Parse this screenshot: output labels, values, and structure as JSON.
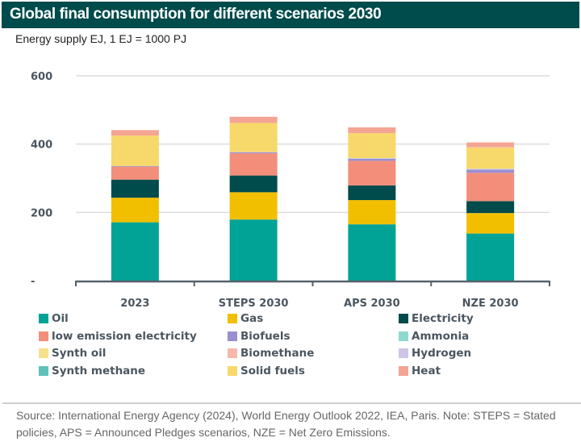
{
  "header": {
    "title": "Global final consumption for different scenarios 2030",
    "subtitle": "Energy supply EJ, 1 EJ  = 1000 PJ"
  },
  "footer": {
    "note": "Source: International Energy Agency (2024), World Energy Outlook 2022, IEA, Paris. Note: STEPS = Stated policies, APS = Announced Pledges scenarios, NZE = Net Zero Emissions."
  },
  "chart_data": {
    "type": "bar",
    "stacked": true,
    "title": "Global final consumption for different scenarios 2030",
    "subtitle": "Energy supply EJ, 1 EJ  = 1000 PJ",
    "xlabel": "",
    "ylabel": "",
    "ylim": [
      0,
      600
    ],
    "yticks": [
      0,
      200,
      400,
      600
    ],
    "ytick_labels": [
      "-",
      "200",
      "400",
      "600"
    ],
    "grid": true,
    "legend_position": "bottom",
    "categories": [
      "2023",
      "STEPS 2030",
      "APS 2030",
      "NZE 2030"
    ],
    "series": [
      {
        "name": "Oil",
        "color": "#00a396",
        "values": [
          171,
          179,
          165,
          138
        ]
      },
      {
        "name": "Gas",
        "color": "#f2bf00",
        "values": [
          72,
          80,
          71,
          60
        ]
      },
      {
        "name": "Electricity",
        "color": "#004b4b",
        "values": [
          53,
          49,
          43,
          35
        ]
      },
      {
        "name": "low emission electricity",
        "color": "#f28e7a",
        "values": [
          38,
          65,
          72,
          83
        ]
      },
      {
        "name": "Biofuels",
        "color": "#9a8fd0",
        "values": [
          2,
          3,
          6,
          9
        ]
      },
      {
        "name": "Ammonia",
        "color": "#8fd8cf",
        "values": [
          0,
          0,
          0,
          0
        ]
      },
      {
        "name": "Hydrogen",
        "color": "#cdc6e6",
        "values": [
          0,
          1,
          2,
          3
        ]
      },
      {
        "name": "Synth methane",
        "color": "#5fc2b8",
        "values": [
          0,
          0,
          0,
          0
        ]
      },
      {
        "name": "Synth oil",
        "color": "#f7e08c",
        "values": [
          0,
          0,
          0,
          0
        ]
      },
      {
        "name": "Solid fuels",
        "color": "#f7d86a",
        "values": [
          89,
          85,
          73,
          62
        ]
      },
      {
        "name": "Biomethane",
        "color": "#f6b8aa",
        "values": [
          0,
          0,
          0,
          2
        ]
      },
      {
        "name": "Heat",
        "color": "#f4a493",
        "values": [
          16,
          18,
          17,
          13
        ]
      }
    ],
    "legend": [
      "Oil",
      "Gas",
      "Electricity",
      "low emission electricity",
      "Biofuels",
      "Ammonia",
      "Synth oil",
      "Biomethane",
      "Hydrogen",
      "Synth methane",
      "Solid fuels",
      "Heat"
    ]
  }
}
